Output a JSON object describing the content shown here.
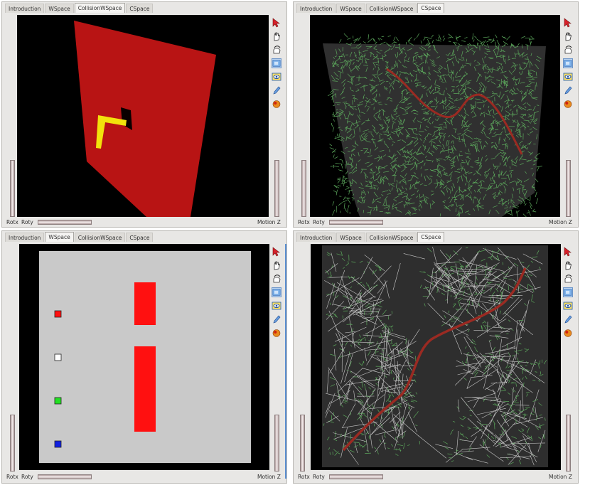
{
  "panels": [
    {
      "tabs": [
        "Introduction",
        "WSpace",
        "CollisionWSpace",
        "CSpace"
      ],
      "active_tab": 2,
      "rot_x": "Rotx",
      "rot_y": "Roty",
      "motion": "Motion Z"
    },
    {
      "tabs": [
        "Introduction",
        "WSpace",
        "CollisionWSpace",
        "CSpace"
      ],
      "active_tab": 3,
      "rot_x": "Rotx",
      "rot_y": "Roty",
      "motion": "Motion Z"
    },
    {
      "tabs": [
        "Introduction",
        "WSpace",
        "CollisionWSpace",
        "CSpace"
      ],
      "active_tab": 1,
      "rot_x": "Rotx",
      "rot_y": "Roty",
      "motion": "Motion Z"
    },
    {
      "tabs": [
        "Introduction",
        "WSpace",
        "CollisionWSpace",
        "CSpace"
      ],
      "active_tab": 3,
      "rot_x": "Rotx",
      "rot_y": "Roty",
      "motion": "Motion Z"
    }
  ],
  "toolbar_icons": [
    "select-arrow-icon",
    "hand-icon",
    "rotate-hand-icon",
    "view-cube-icon",
    "camera-icon",
    "pen-icon",
    "sphere-icon"
  ],
  "colors": {
    "obstacle_red": "#ff1010",
    "wall_red": "#b81414",
    "robot_yellow": "#f2e20c",
    "path_red": "#9a2a22",
    "tree_green": "#5ca85c",
    "tree_gray": "#c8c8c8",
    "floor_gray": "#c9c9c9",
    "selected_tab": "#f4f3f1"
  }
}
